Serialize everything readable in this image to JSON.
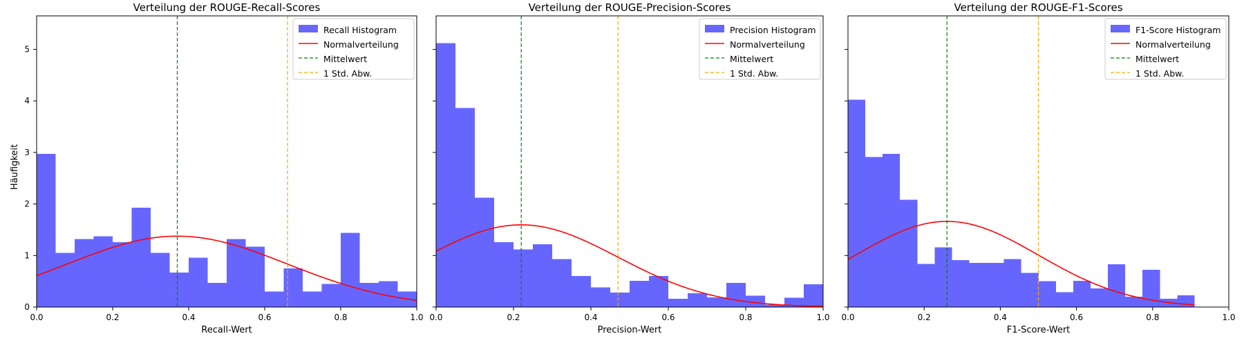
{
  "figure": {
    "ylabel": "Häufigkeit"
  },
  "chart_data": [
    {
      "type": "bar",
      "title": "Verteilung der ROUGE-Recall-Scores",
      "xlabel": "Recall-Wert",
      "ylabel": "Häufigkeit",
      "xlim": [
        0,
        1
      ],
      "ylim": [
        0,
        5.65
      ],
      "xticks": [
        "0.0",
        "0.2",
        "0.4",
        "0.6",
        "0.8",
        "1.0"
      ],
      "yticks": [
        "0",
        "1",
        "2",
        "3",
        "4",
        "5"
      ],
      "bin_width": 0.05,
      "bin_start": 0,
      "values": [
        2.97,
        1.05,
        1.32,
        1.37,
        1.26,
        1.93,
        1.05,
        0.67,
        0.96,
        0.47,
        1.32,
        1.17,
        0.3,
        0.75,
        0.3,
        0.45,
        1.44,
        0.47,
        0.5,
        0.3
      ],
      "normal": {
        "mean": 0.37,
        "std": 0.29,
        "x_range": [
          0,
          1
        ]
      },
      "mean_line": 0.37,
      "std_line": 0.66,
      "legend": [
        "Recall Histogram",
        "Normalverteilung",
        "Mittelwert",
        "1 Std. Abw."
      ],
      "legend_position": "top-right",
      "colors": {
        "bar": "#6666ff",
        "normal": "#ff0000",
        "mean": "#008000",
        "std": "#ffa500"
      }
    },
    {
      "type": "bar",
      "title": "Verteilung der ROUGE-Precision-Scores",
      "xlabel": "Precision-Wert",
      "xlim": [
        0,
        1
      ],
      "ylim": [
        0,
        5.65
      ],
      "xticks": [
        "0.0",
        "0.2",
        "0.4",
        "0.6",
        "0.8",
        "1.0"
      ],
      "bin_width": 0.05,
      "bin_start": 0,
      "values": [
        5.12,
        3.86,
        2.12,
        1.26,
        1.12,
        1.22,
        0.93,
        0.6,
        0.38,
        0.28,
        0.51,
        0.6,
        0.16,
        0.27,
        0.19,
        0.47,
        0.22,
        0.05,
        0.18,
        0.44
      ],
      "normal": {
        "mean": 0.22,
        "std": 0.25,
        "x_range": [
          0,
          1
        ]
      },
      "mean_line": 0.22,
      "std_line": 0.47,
      "legend": [
        "Precision Histogram",
        "Normalverteilung",
        "Mittelwert",
        "1 Std. Abw."
      ],
      "legend_position": "top-right",
      "colors": {
        "bar": "#6666ff",
        "normal": "#ff0000",
        "mean": "#008000",
        "std": "#ffa500"
      }
    },
    {
      "type": "bar",
      "title": "Verteilung der ROUGE-F1-Scores",
      "xlabel": "F1-Score-Wert",
      "xlim": [
        0,
        1
      ],
      "ylim": [
        0,
        5.65
      ],
      "xticks": [
        "0.0",
        "0.2",
        "0.4",
        "0.6",
        "0.8",
        "1.0"
      ],
      "bin_width": 0.0455,
      "bin_start": 0,
      "values": [
        4.02,
        2.91,
        2.97,
        2.08,
        0.84,
        1.16,
        0.91,
        0.86,
        0.86,
        0.93,
        0.66,
        0.5,
        0.29,
        0.51,
        0.36,
        0.83,
        0.2,
        0.72,
        0.16,
        0.23
      ],
      "normal": {
        "mean": 0.26,
        "std": 0.24,
        "x_range": [
          0,
          0.91
        ]
      },
      "mean_line": 0.26,
      "std_line": 0.5,
      "legend": [
        "F1-Score Histogram",
        "Normalverteilung",
        "Mittelwert",
        "1 Std. Abw."
      ],
      "legend_position": "top-right",
      "colors": {
        "bar": "#6666ff",
        "normal": "#ff0000",
        "mean": "#008000",
        "std": "#ffa500"
      }
    }
  ]
}
